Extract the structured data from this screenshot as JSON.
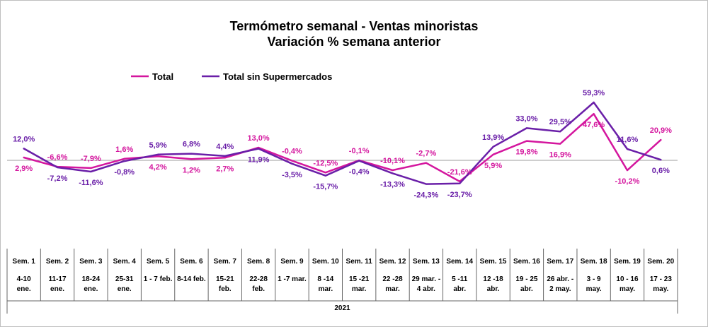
{
  "chart_data": {
    "type": "line",
    "title": "Termómetro semanal - Ventas minoristas",
    "subtitle": "Variación % semana anterior",
    "colors": {
      "Total": "#d4169e",
      "Total sin Supermercados": "#6a1fa8"
    },
    "legend_position": "top-left",
    "grid": false,
    "categories": [
      {
        "week": "Sem. 1",
        "dates": [
          "4-10",
          "ene."
        ]
      },
      {
        "week": "Sem. 2",
        "dates": [
          "11-17",
          "ene."
        ]
      },
      {
        "week": "Sem. 3",
        "dates": [
          "18-24",
          "ene."
        ]
      },
      {
        "week": "Sem. 4",
        "dates": [
          "25-31",
          "ene."
        ]
      },
      {
        "week": "Sem. 5",
        "dates": [
          "1 - 7 feb."
        ]
      },
      {
        "week": "Sem. 6",
        "dates": [
          "8-14 feb."
        ]
      },
      {
        "week": "Sem. 7",
        "dates": [
          "15-21",
          "feb."
        ]
      },
      {
        "week": "Sem. 8",
        "dates": [
          "22-28",
          "feb."
        ]
      },
      {
        "week": "Sem. 9",
        "dates": [
          "1 -7 mar."
        ]
      },
      {
        "week": "Sem. 10",
        "dates": [
          "8 -14",
          "mar."
        ]
      },
      {
        "week": "Sem. 11",
        "dates": [
          "15 -21",
          "mar."
        ]
      },
      {
        "week": "Sem. 12",
        "dates": [
          "22 -28",
          "mar."
        ]
      },
      {
        "week": "Sem. 13",
        "dates": [
          "29 mar. -",
          "4 abr."
        ]
      },
      {
        "week": "Sem. 14",
        "dates": [
          "5 -11",
          "abr."
        ]
      },
      {
        "week": "Sem. 15",
        "dates": [
          "12 -18",
          "abr."
        ]
      },
      {
        "week": "Sem. 16",
        "dates": [
          "19 - 25",
          "abr."
        ]
      },
      {
        "week": "Sem. 17",
        "dates": [
          "26 abr. -",
          "2 may."
        ]
      },
      {
        "week": "Sem. 18",
        "dates": [
          "3 - 9",
          "may."
        ]
      },
      {
        "week": "Sem. 19",
        "dates": [
          "10 - 16",
          "may."
        ]
      },
      {
        "week": "Sem. 20",
        "dates": [
          "17 - 23",
          "may."
        ]
      }
    ],
    "year_label": "2021",
    "ylim": [
      -100,
      80
    ],
    "series": [
      {
        "name": "Total",
        "values": [
          2.9,
          -6.6,
          -7.9,
          1.6,
          4.2,
          1.2,
          2.7,
          13.0,
          -0.4,
          -12.5,
          -0.1,
          -10.1,
          -2.7,
          -21.6,
          5.9,
          19.8,
          16.9,
          47.6,
          -10.2,
          20.9
        ],
        "labels": [
          "2,9%",
          "-6,6%",
          "-7,9%",
          "1,6%",
          "4,2%",
          "1,2%",
          "2,7%",
          "13,0%",
          "-0,4%",
          "-12,5%",
          "-0,1%",
          "-10,1%",
          "-2,7%",
          "-21,6%",
          "5,9%",
          "19,8%",
          "16,9%",
          "47,6%",
          "-10,2%",
          "20,9%"
        ]
      },
      {
        "name": "Total sin Supermercados",
        "values": [
          12.0,
          -7.2,
          -11.6,
          -0.8,
          5.9,
          6.8,
          4.4,
          11.9,
          -3.5,
          -15.7,
          -0.4,
          -13.3,
          -24.3,
          -23.7,
          13.9,
          33.0,
          29.5,
          59.3,
          11.6,
          0.6
        ],
        "labels": [
          "12,0%",
          "-7,2%",
          "-11,6%",
          "-0,8%",
          "5,9%",
          "6,8%",
          "4,4%",
          "11,9%",
          "-3,5%",
          "-15,7%",
          "-0,4%",
          "-13,3%",
          "-24,3%",
          "-23,7%",
          "13,9%",
          "33,0%",
          "29,5%",
          "59,3%",
          "11,6%",
          "0,6%"
        ]
      }
    ]
  }
}
